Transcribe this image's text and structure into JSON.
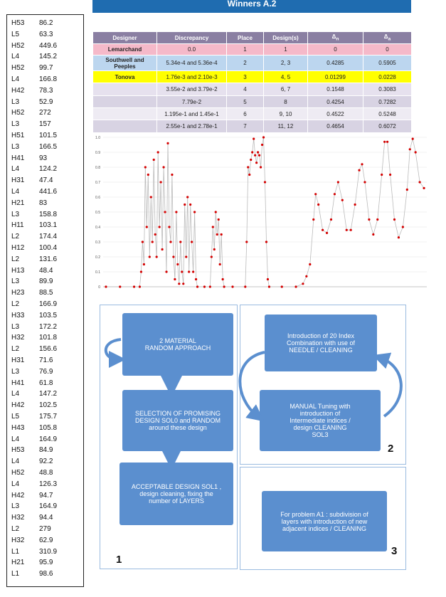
{
  "banner_title": "Winners A.2",
  "sidebar": {
    "rows": [
      [
        "H53",
        86.2
      ],
      [
        "L5",
        63.3
      ],
      [
        "H52",
        449.6
      ],
      [
        "L4",
        145.2
      ],
      [
        "H52",
        99.7
      ],
      [
        "L4",
        166.8
      ],
      [
        "H42",
        78.3
      ],
      [
        "L3",
        52.9
      ],
      [
        "H52",
        272
      ],
      [
        "L3",
        157
      ],
      [
        "H51",
        101.5
      ],
      [
        "L3",
        166.5
      ],
      [
        "H41",
        93
      ],
      [
        "L4",
        124.2
      ],
      [
        "H31",
        47.4
      ],
      [
        "L4",
        441.6
      ],
      [
        "H21",
        83
      ],
      [
        "L3",
        158.8
      ],
      [
        "H11",
        103.1
      ],
      [
        "L2",
        174.4
      ],
      [
        "H12",
        100.4
      ],
      [
        "L2",
        131.6
      ],
      [
        "H13",
        48.4
      ],
      [
        "L3",
        89.9
      ],
      [
        "H23",
        88.5
      ],
      [
        "L2",
        166.9
      ],
      [
        "H33",
        103.5
      ],
      [
        "L3",
        172.2
      ],
      [
        "H32",
        101.8
      ],
      [
        "L2",
        156.6
      ],
      [
        "H31",
        71.6
      ],
      [
        "L3",
        76.9
      ],
      [
        "H41",
        61.8
      ],
      [
        "L4",
        147.2
      ],
      [
        "H42",
        102.5
      ],
      [
        "L5",
        175.7
      ],
      [
        "H43",
        105.8
      ],
      [
        "L4",
        164.9
      ],
      [
        "H53",
        84.9
      ],
      [
        "L4",
        92.2
      ],
      [
        "H52",
        48.8
      ],
      [
        "L4",
        126.3
      ],
      [
        "H42",
        94.7
      ],
      [
        "L3",
        164.9
      ],
      [
        "H32",
        94.4
      ],
      [
        "L2",
        279
      ],
      [
        "H32",
        62.9
      ],
      [
        "L1",
        310.9
      ],
      [
        "H21",
        95.9
      ],
      [
        "L1",
        98.6
      ]
    ]
  },
  "table": {
    "header": [
      {
        "text": "Designer"
      },
      {
        "text": "Discrepancy"
      },
      {
        "text": "Place"
      },
      {
        "text": "Design(s)"
      },
      {
        "text": "Δ",
        "sub": "n"
      },
      {
        "text": "Δ",
        "sub": "a"
      }
    ],
    "row_colors": [
      "#f5b9c9",
      "#bcd6ef",
      "#ffff00",
      "#e6e1ee",
      "#d8d3e3",
      "#eeebf3",
      "#d8d3e3"
    ],
    "rows": [
      [
        "Lemarchand",
        "0.0",
        "1",
        "1",
        "0",
        "0"
      ],
      [
        "Southwell and Peeples",
        "5.34e-4 and 5.36e-4",
        "2",
        "2, 3",
        "0.4285",
        "0.5905"
      ],
      [
        "Tonova",
        "1.76e-3 and 2.10e-3",
        "3",
        "4, 5",
        "0.01299",
        "0.0228"
      ],
      [
        null,
        "3.55e-2 and 3.79e-2",
        "4",
        "6, 7",
        "0.1548",
        "0.3083"
      ],
      [
        null,
        "7.79e-2",
        "5",
        "8",
        "0.4254",
        "0.7282"
      ],
      [
        null,
        "1.195e-1 and 1.45e-1",
        "6",
        "9, 10",
        "0.4522",
        "0.5248"
      ],
      [
        null,
        "2.55e-1 and 2.78e-1",
        "7",
        "11, 12",
        "0.4654",
        "0.6072"
      ]
    ]
  },
  "chart_data": {
    "type": "line",
    "x": [
      0,
      20,
      40,
      48,
      50,
      52,
      54,
      56,
      58,
      60,
      62,
      64,
      66,
      68,
      70,
      72,
      74,
      76,
      78,
      80,
      82,
      84,
      86,
      88,
      90,
      92,
      94,
      96,
      98,
      100,
      102,
      104,
      106,
      108,
      110,
      112,
      114,
      116,
      118,
      120,
      122,
      124,
      126,
      128,
      130,
      140,
      148,
      150,
      152,
      154,
      156,
      158,
      160,
      162,
      164,
      166,
      168,
      180,
      198,
      200,
      202,
      204,
      206,
      208,
      210,
      212,
      214,
      216,
      218,
      220,
      222,
      224,
      226,
      228,
      230,
      232,
      250,
      270,
      280,
      285,
      290,
      295,
      298,
      302,
      308,
      314,
      320,
      325,
      330,
      336,
      342,
      348,
      354,
      360,
      364,
      368,
      374,
      380,
      386,
      392,
      396,
      400,
      404,
      410,
      416,
      422,
      428,
      432,
      436,
      440,
      446,
      452
    ],
    "series": [
      {
        "color": "#d40000",
        "line_color": "#bbbbbb",
        "values": [
          0,
          0,
          0,
          0,
          0.1,
          0.3,
          0.15,
          0.8,
          0.4,
          0.75,
          0.2,
          0.6,
          0.3,
          0.85,
          0.35,
          0.2,
          0.9,
          0.4,
          0.7,
          0.25,
          0.8,
          0.5,
          0.1,
          0.96,
          0.4,
          0.3,
          0.75,
          0.2,
          0.05,
          0.5,
          0.15,
          0.02,
          0.3,
          0.1,
          0.02,
          0.55,
          0.2,
          0.6,
          0.1,
          0.55,
          0.3,
          0.1,
          0.5,
          0.05,
          0,
          0,
          0,
          0.2,
          0.4,
          0.25,
          0.5,
          0.35,
          0.45,
          0.15,
          0.35,
          0.05,
          0,
          0,
          0,
          0.3,
          0.8,
          0.75,
          0.85,
          0.9,
          0.99,
          0.88,
          0.83,
          0.9,
          0.88,
          0.8,
          0.95,
          1.0,
          0.7,
          0.3,
          0.05,
          0,
          0,
          0,
          0.02,
          0.07,
          0.15,
          0.45,
          0.62,
          0.55,
          0.38,
          0.36,
          0.45,
          0.62,
          0.7,
          0.58,
          0.38,
          0.38,
          0.55,
          0.78,
          0.82,
          0.7,
          0.45,
          0.35,
          0.45,
          0.75,
          0.97,
          0.97,
          0.75,
          0.45,
          0.33,
          0.4,
          0.65,
          0.92,
          0.99,
          0.9,
          0.7,
          0.66
        ]
      }
    ],
    "xlim": [
      -4,
      456
    ],
    "ylim": [
      0,
      1
    ],
    "yticks": [
      0,
      0.1,
      0.2,
      0.3,
      0.4,
      0.5,
      0.6,
      0.7,
      0.8,
      0.9,
      {
        "value": 1,
        "label": "1.0"
      }
    ],
    "grid": true
  },
  "flowchart": {
    "panels": [
      {
        "label": "1"
      },
      {
        "label": "2"
      },
      {
        "label": "3"
      }
    ],
    "boxes": [
      {
        "lines": [
          "2 MATERIAL",
          "RANDOM APPROACH"
        ]
      },
      {
        "lines": [
          "SELECTION OF PROMISING",
          "DESIGN SOL0 and RANDOM",
          "around these design"
        ]
      },
      {
        "lines": [
          "ACCEPTABLE DESIGN SOL1 ,",
          "design cleaning,  fixing the",
          "number of LAYERS"
        ]
      },
      {
        "lines": [
          "Introduction of 20 Index",
          "Combination with use of",
          "NEEDLE / CLEANING"
        ]
      },
      {
        "lines": [
          "MANUAL Tuning with",
          "introduction of",
          "Intermediate indices /",
          "design CLEANING",
          "SOL3"
        ]
      },
      {
        "lines": [
          "For problem A1 : subdivision of",
          "layers with introduction of new",
          "adjacent indices / CLEANING"
        ]
      }
    ]
  }
}
